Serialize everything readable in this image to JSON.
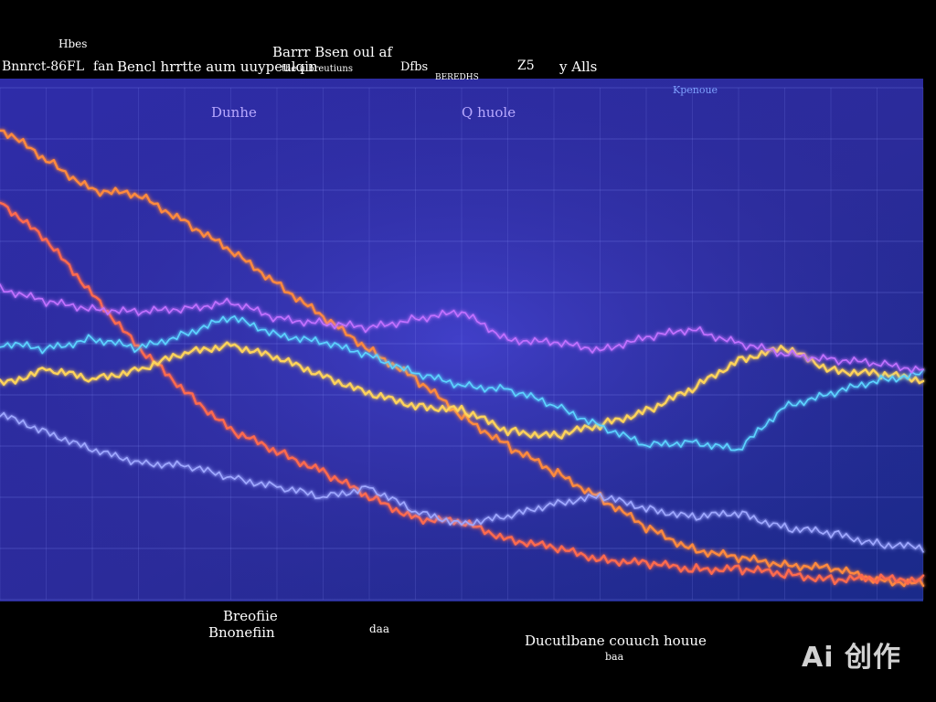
{
  "chart_data": {
    "type": "line",
    "title": "",
    "xlabel": "",
    "ylabel": "",
    "grid": true,
    "legend": "none",
    "x": [
      0,
      1,
      2,
      3,
      4,
      5,
      6,
      7,
      8,
      9,
      10,
      11,
      12,
      13,
      14,
      15,
      16,
      17,
      18,
      19,
      20
    ],
    "xlim": [
      0,
      20
    ],
    "ylim": [
      0,
      100
    ],
    "series": [
      {
        "color": "#ff8a3d",
        "values": [
          92,
          86,
          80,
          79,
          74,
          68,
          62,
          55,
          49,
          43,
          36,
          30,
          25,
          20,
          14,
          10,
          8,
          7,
          6,
          4,
          3
        ]
      },
      {
        "color": "#ff6a4d",
        "values": [
          78,
          70,
          60,
          49,
          41,
          33,
          29,
          25,
          20,
          16,
          15,
          12,
          10,
          8,
          7,
          6,
          6,
          5,
          4,
          4,
          4
        ]
      },
      {
        "color": "#ffd35a",
        "values": [
          42,
          45,
          43,
          45,
          48,
          50,
          47,
          44,
          40,
          38,
          37,
          33,
          32,
          34,
          37,
          41,
          47,
          49,
          45,
          44,
          43
        ]
      },
      {
        "color": "#9ea7ff",
        "values": [
          36,
          33,
          29,
          27,
          26,
          24,
          22,
          20,
          22,
          17,
          15,
          16,
          19,
          20,
          18,
          16,
          17,
          14,
          13,
          11,
          10
        ]
      },
      {
        "color": "#5cd2ff",
        "values": [
          50,
          49,
          51,
          49,
          52,
          55,
          52,
          50,
          48,
          44,
          42,
          41,
          38,
          34,
          30,
          31,
          29,
          38,
          40,
          43,
          44
        ]
      },
      {
        "color": "#c070ff",
        "values": [
          61,
          58,
          57,
          56,
          57,
          58,
          55,
          54,
          53,
          55,
          56,
          51,
          50,
          49,
          51,
          53,
          50,
          48,
          47,
          46,
          45
        ]
      }
    ],
    "annotations": [
      "Hbes",
      "Barrr Bsen oul af",
      "Bnnrct-86FL",
      "fan",
      "Bencl hrrtte aum uuypeulqin",
      "the ulbreutiuns",
      "Dfbs",
      "Z5",
      "y Alls",
      "BEREDHS",
      "Kpenoue",
      "Dunhe",
      "Q huole",
      "Breofiie",
      "Bnonefiin",
      "Ducutlbane couuch houue",
      "daa",
      "baa"
    ]
  },
  "watermark": "Ai 创作"
}
